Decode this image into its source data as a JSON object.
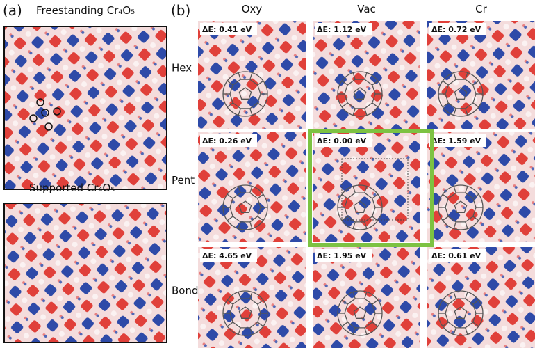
{
  "panel_a": {
    "label": "(a)",
    "freestanding_title": "Freestanding Cr₄O₅",
    "supported_title": "Supported Cr₄O₅"
  },
  "panel_b": {
    "label": "(b)",
    "columns": [
      "Oxy",
      "Vac",
      "Cr"
    ],
    "rows": [
      {
        "label": "Hex",
        "cells": [
          "ΔE: 0.41 eV",
          "ΔE: 1.12 eV",
          "ΔE: 0.72 eV"
        ]
      },
      {
        "label": "Pent",
        "cells": [
          "ΔE: 0.26 eV",
          "ΔE: 0.00 eV",
          "ΔE: 1.59 eV"
        ]
      },
      {
        "label": "Bond",
        "cells": [
          "ΔE: 4.65 eV",
          "ΔE: 1.95 eV",
          "ΔE: 0.61 eV"
        ]
      }
    ]
  }
}
